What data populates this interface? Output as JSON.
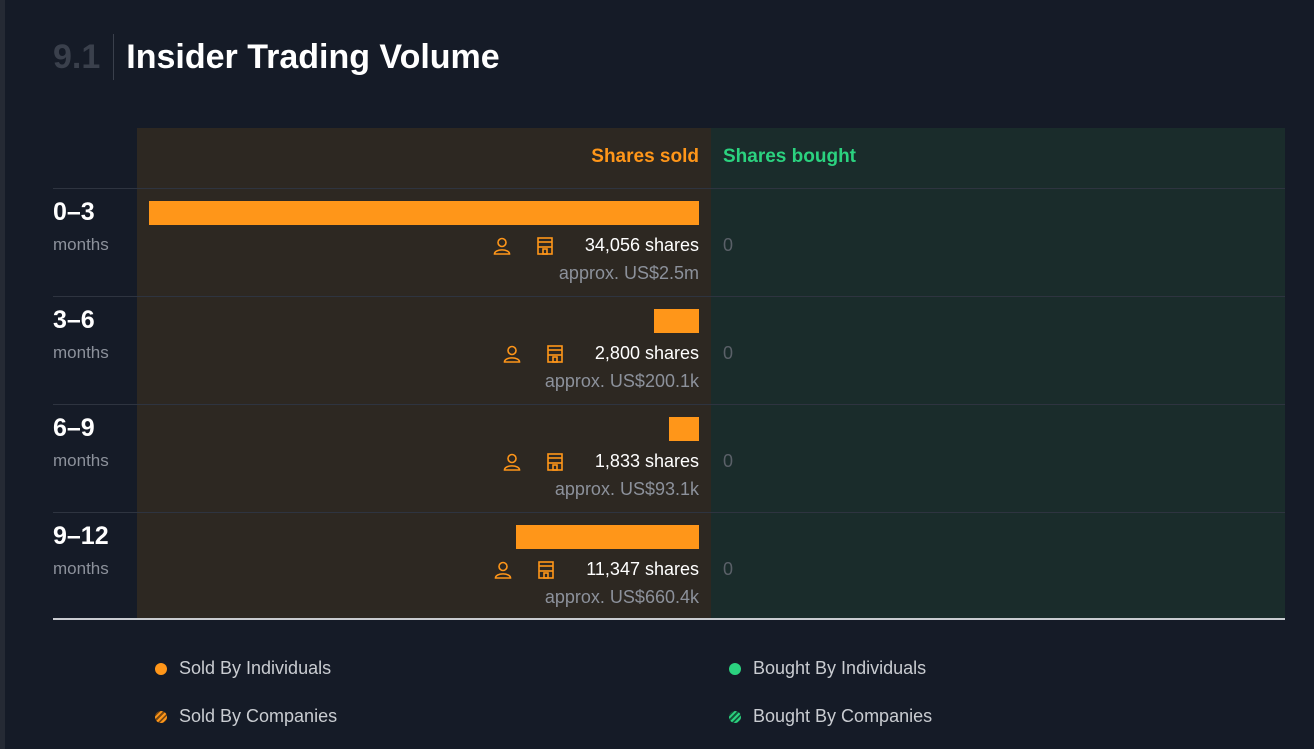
{
  "header": {
    "section_number": "9.1",
    "title": "Insider Trading Volume"
  },
  "colors": {
    "sold": "#ff9619",
    "bought": "#2bd27f",
    "background": "#151b27",
    "sold_panel": "#2d2822",
    "bought_panel": "#1a2c2b"
  },
  "chart_data": {
    "type": "bar",
    "orientation": "horizontal-diverging",
    "columns": {
      "sold_label": "Shares sold",
      "bought_label": "Shares bought"
    },
    "categories": [
      {
        "label": "0–3",
        "unit": "months"
      },
      {
        "label": "3–6",
        "unit": "months"
      },
      {
        "label": "6–9",
        "unit": "months"
      },
      {
        "label": "9–12",
        "unit": "months"
      }
    ],
    "series": [
      {
        "name": "Shares sold",
        "values": [
          34056,
          2800,
          1833,
          11347
        ],
        "labels": [
          "34,056 shares",
          "2,800 shares",
          "1,833 shares",
          "11,347 shares"
        ],
        "value_labels": [
          "approx. US$2.5m",
          "approx. US$200.1k",
          "approx. US$93.1k",
          "approx. US$660.4k"
        ]
      },
      {
        "name": "Shares bought",
        "values": [
          0,
          0,
          0,
          0
        ],
        "labels": [
          "0",
          "0",
          "0",
          "0"
        ]
      }
    ],
    "icons": [
      "person-icon",
      "building-icon"
    ]
  },
  "legend": {
    "sold_individuals": "Sold By Individuals",
    "sold_companies": "Sold By Companies",
    "bought_individuals": "Bought By Individuals",
    "bought_companies": "Bought By Companies"
  }
}
